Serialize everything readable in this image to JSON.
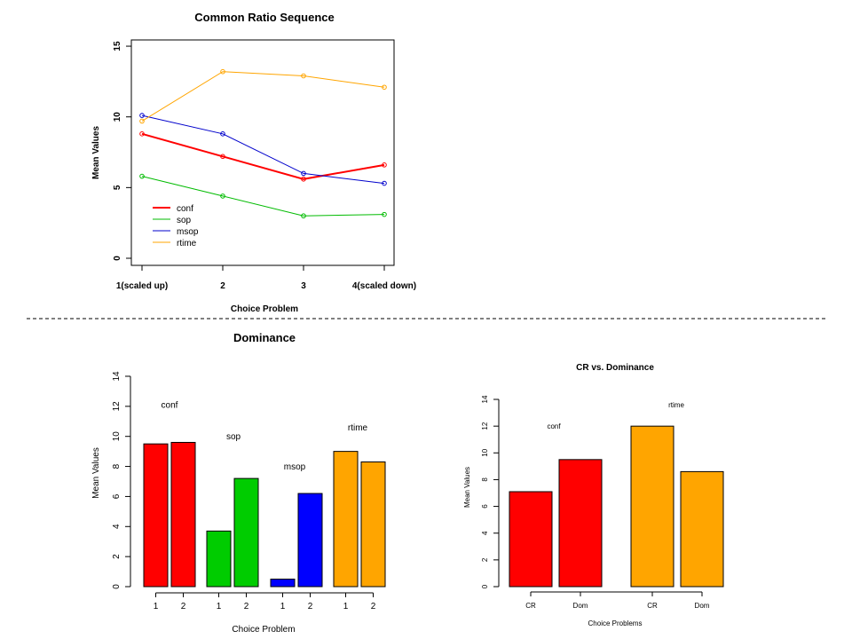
{
  "chart_data": [
    {
      "type": "line",
      "title": "Common Ratio Sequence",
      "xlabel": "Choice Problem",
      "ylabel": "Mean Values",
      "categories": [
        "1(scaled up)",
        "2",
        "3",
        "4(scaled down)"
      ],
      "ylim": [
        0,
        15
      ],
      "yticks": [
        "0",
        "5",
        "10",
        "15"
      ],
      "legend_position": "bottom-left",
      "series": [
        {
          "name": "conf",
          "color": "#ff0000",
          "values": [
            8.8,
            7.2,
            5.6,
            6.6
          ]
        },
        {
          "name": "sop",
          "color": "#00bb00",
          "values": [
            5.8,
            4.4,
            3.0,
            3.1
          ]
        },
        {
          "name": "msop",
          "color": "#0000cc",
          "values": [
            10.1,
            8.8,
            6.0,
            5.3
          ]
        },
        {
          "name": "rtime",
          "color": "#ffa500",
          "values": [
            9.7,
            13.2,
            12.9,
            12.1
          ]
        }
      ]
    },
    {
      "type": "bar",
      "title": "Dominance",
      "xlabel": "Choice Problem",
      "ylabel": "Mean Values",
      "ylim": [
        0,
        14
      ],
      "yticks": [
        "0",
        "2",
        "4",
        "6",
        "8",
        "10",
        "12",
        "14"
      ],
      "groups": [
        {
          "name": "conf",
          "color": "#ff0000",
          "bars": [
            {
              "label": "1",
              "value": 9.5
            },
            {
              "label": "2",
              "value": 9.6
            }
          ],
          "label_value": 11.9
        },
        {
          "name": "sop",
          "color": "#00cc00",
          "bars": [
            {
              "label": "1",
              "value": 3.7
            },
            {
              "label": "2",
              "value": 7.2
            }
          ],
          "label_value": 9.8
        },
        {
          "name": "msop",
          "color": "#0000ff",
          "bars": [
            {
              "label": "1",
              "value": 0.5
            },
            {
              "label": "2",
              "value": 6.2
            }
          ],
          "label_value": 7.8
        },
        {
          "name": "rtime",
          "color": "#ffa500",
          "bars": [
            {
              "label": "1",
              "value": 9.0
            },
            {
              "label": "2",
              "value": 8.3
            }
          ],
          "label_value": 10.4
        }
      ]
    },
    {
      "type": "bar",
      "title": "CR vs. Dominance",
      "xlabel": "Choice Problems",
      "ylabel": "Mean Values",
      "ylim": [
        0,
        14
      ],
      "yticks": [
        "0",
        "2",
        "4",
        "6",
        "8",
        "10",
        "12",
        "14"
      ],
      "groups": [
        {
          "name": "conf",
          "color": "#ff0000",
          "bars": [
            {
              "label": "CR",
              "value": 7.1
            },
            {
              "label": "Dom",
              "value": 9.5
            }
          ],
          "label_value": 11.8
        },
        {
          "name": "rtime",
          "color": "#ffa500",
          "bars": [
            {
              "label": "CR",
              "value": 12.0
            },
            {
              "label": "Dom",
              "value": 8.6
            }
          ],
          "label_value": 13.4
        }
      ]
    }
  ]
}
